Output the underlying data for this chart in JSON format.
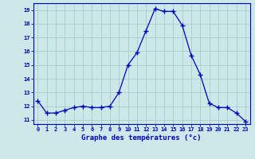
{
  "hours": [
    0,
    1,
    2,
    3,
    4,
    5,
    6,
    7,
    8,
    9,
    10,
    11,
    12,
    13,
    14,
    15,
    16,
    17,
    18,
    19,
    20,
    21,
    22,
    23
  ],
  "temps": [
    12.4,
    11.5,
    11.5,
    11.7,
    11.9,
    12.0,
    11.9,
    11.9,
    12.0,
    13.0,
    15.0,
    15.9,
    17.5,
    19.1,
    18.9,
    18.9,
    17.9,
    15.7,
    14.3,
    12.2,
    11.9,
    11.9,
    11.5,
    10.9
  ],
  "line_color": "#0000bb",
  "marker_color": "#0000bb",
  "bg_color": "#cce8e8",
  "grid_color": "#a8cccc",
  "xlabel": "Graphe des températures (°c)",
  "xlabel_color": "#0000bb",
  "tick_color": "#0000bb",
  "ylim": [
    10.7,
    19.5
  ],
  "yticks": [
    11,
    12,
    13,
    14,
    15,
    16,
    17,
    18,
    19
  ],
  "xlim": [
    -0.5,
    23.5
  ]
}
